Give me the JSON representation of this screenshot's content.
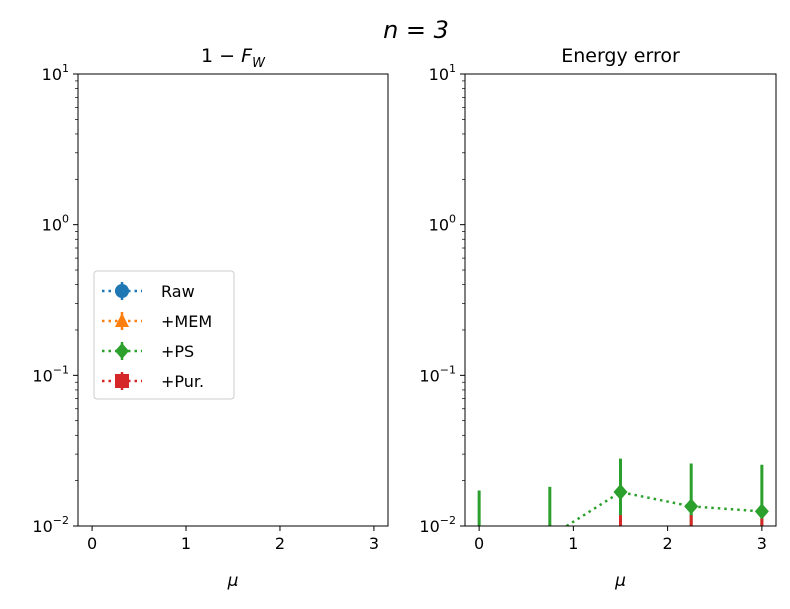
{
  "figure": {
    "suptitle": "n = 3"
  },
  "chart_data": [
    {
      "type": "line",
      "title": "1 − F_W",
      "xlabel": "μ",
      "ylabel": "",
      "yscale": "log",
      "xlim": [
        -0.15,
        3.15
      ],
      "ylim": [
        0.01,
        10
      ],
      "xticks": [
        0,
        1,
        2,
        3
      ],
      "yticks": [
        0.01,
        0.1,
        1,
        10
      ],
      "legend": {
        "placement": "center-left",
        "entries": [
          "Raw",
          "+MEM",
          "+PS",
          "+Pur."
        ]
      },
      "series": []
    },
    {
      "type": "line",
      "title": "Energy error",
      "xlabel": "μ",
      "ylabel": "",
      "yscale": "log",
      "xlim": [
        -0.15,
        3.15
      ],
      "ylim": [
        0.01,
        10
      ],
      "xticks": [
        0,
        1,
        2,
        3
      ],
      "yticks": [
        0.01,
        0.1,
        1,
        10
      ],
      "series": [
        {
          "name": "+PS",
          "color": "#2ca02c",
          "marker": "diamond",
          "linestyle": "dotted",
          "x": [
            0,
            0.75,
            1.5,
            2.25,
            3.0
          ],
          "y": [
            0.0075,
            0.0085,
            0.0168,
            0.0135,
            0.0125
          ],
          "yerr_high": [
            0.0172,
            0.0182,
            0.028,
            0.026,
            0.0255
          ]
        },
        {
          "name": "+Pur.",
          "color": "#d62728",
          "marker": "square",
          "linestyle": "dotted",
          "x": [
            1.5,
            2.25,
            3.0
          ],
          "y": [
            0.0055,
            0.0055,
            0.0055
          ],
          "yerr_high": [
            0.0118,
            0.0118,
            0.0112
          ]
        }
      ]
    }
  ],
  "legend_style": {
    "Raw": {
      "color": "#1f77b4",
      "marker": "circle"
    },
    "+MEM": {
      "color": "#ff7f0e",
      "marker": "triangle"
    },
    "+PS": {
      "color": "#2ca02c",
      "marker": "diamond"
    },
    "+Pur.": {
      "color": "#d62728",
      "marker": "square"
    }
  }
}
